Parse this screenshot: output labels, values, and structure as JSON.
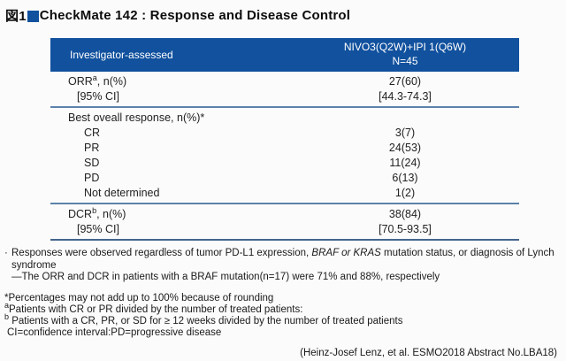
{
  "colors": {
    "header_bg": "#11519e",
    "title_square": "#11519e",
    "section_divider": "#5c82ab",
    "table_bottom_border": "#44658c"
  },
  "title": {
    "fig_label": "図1",
    "square_icon": "blue-square",
    "text": "CheckMate 142 : Response and Disease Control"
  },
  "table": {
    "header": {
      "col1": "Investigator-assessed",
      "col2_line1": "NIVO3(Q2W)+IPI 1(Q6W)",
      "col2_line2": "N=45"
    },
    "rows": [
      {
        "pre": "ORR",
        "sup": "a",
        "post": ", n(%)",
        "value": "27(60)"
      },
      {
        "pre": "[95% CI]",
        "value": "[44.3-74.3]"
      },
      {
        "pre": "Best oveall response, n(%)*",
        "value": ""
      },
      {
        "pre": "CR",
        "value": "3(7)"
      },
      {
        "pre": "PR",
        "value": "24(53)"
      },
      {
        "pre": "SD",
        "value": "11(24)"
      },
      {
        "pre": "PD",
        "value": "6(13)"
      },
      {
        "pre": "Not determined",
        "value": "1(2)"
      },
      {
        "pre": "DCR",
        "sup": "b",
        "post": ", n(%)",
        "value": "38(84)"
      },
      {
        "pre": "[95% CI]",
        "value": "[70.5-93.5]"
      }
    ]
  },
  "notes": {
    "bullet": "·",
    "line1_pre": "Responses were observed regardless of tumor PD-L1 expression, ",
    "line1_italic": "BRAF or KRAS",
    "line1_post": " mutation status, or diagnosis of Lynch syndrome",
    "line2": "—The ORR and DCR in patients with a BRAF mutation(n=17) were 71% and 88%, respectively"
  },
  "footnotes": [
    {
      "marker": "",
      "text": "*Percentages may not add up to 100% because of rounding"
    },
    {
      "marker": "a",
      "text": "Patients with CR or PR divided by the number of treated patients:"
    },
    {
      "marker": "b",
      "text": "Patients with a CR, PR, or SD for ≥ 12 weeks divided by the number of treated patients"
    },
    {
      "marker": "",
      "text": "CI=confidence interval:PD=progressive disease"
    }
  ],
  "citation": "(Heinz-Josef Lenz, et al. ESMO2018  Abstract No.LBA18)"
}
